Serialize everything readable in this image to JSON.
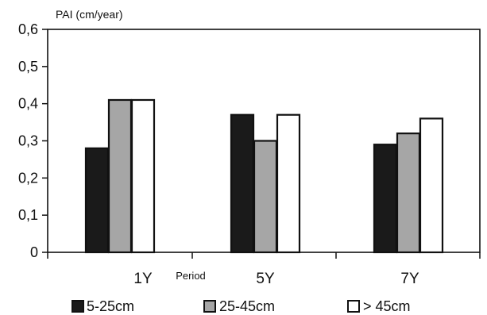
{
  "chart_data": {
    "type": "bar",
    "ylabel": "PAI (cm/year)",
    "xlabel": "Period",
    "categories": [
      "1Y",
      "5Y",
      "7Y"
    ],
    "ylim": [
      0,
      0.6
    ],
    "yticks": [
      "0",
      "0,1",
      "0,2",
      "0,3",
      "0,4",
      "0,5",
      "0,6"
    ],
    "ytick_values": [
      0,
      0.1,
      0.2,
      0.3,
      0.4,
      0.5,
      0.6
    ],
    "grid": false,
    "legend_position": "bottom",
    "series": [
      {
        "name": "5-25cm",
        "values": [
          0.28,
          0.37,
          0.29
        ],
        "color": "#1a1a1a"
      },
      {
        "name": "25-45cm",
        "values": [
          0.41,
          0.3,
          0.32
        ],
        "color": "#a6a6a6"
      },
      {
        "name": "> 45cm",
        "values": [
          0.41,
          0.37,
          0.36
        ],
        "color": "#ffffff"
      }
    ]
  }
}
